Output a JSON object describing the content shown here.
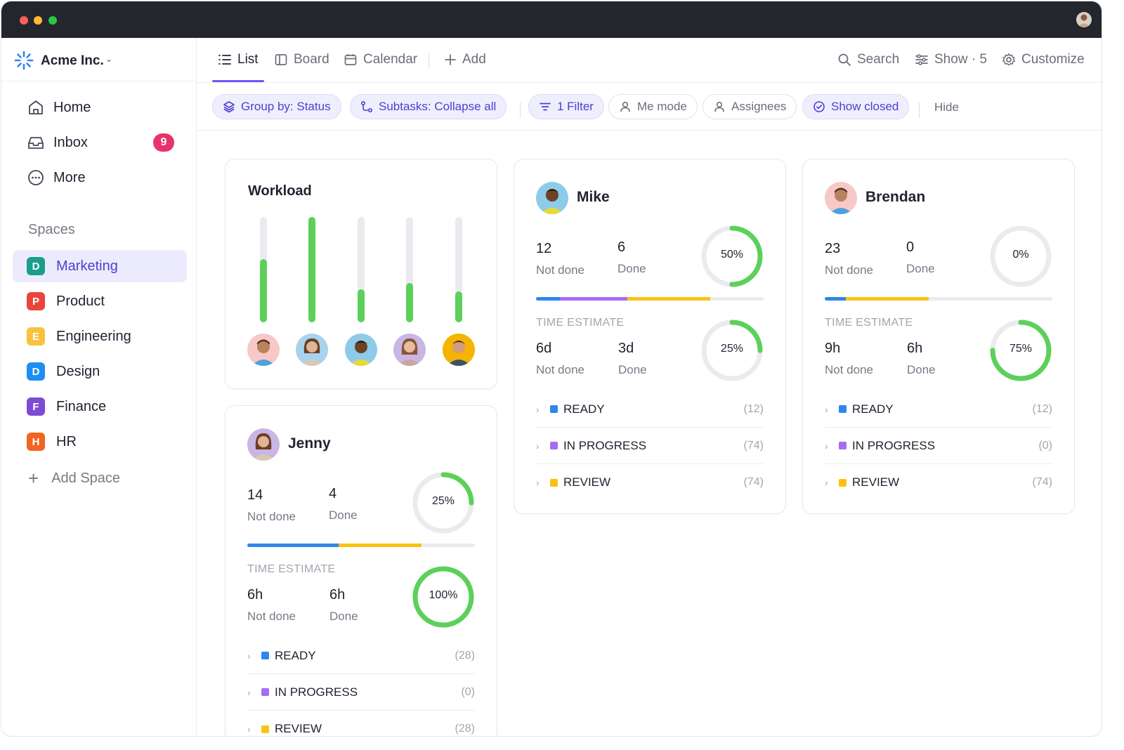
{
  "workspace": {
    "name": "Acme Inc."
  },
  "nav": {
    "home": "Home",
    "inbox": "Inbox",
    "inbox_badge": "9",
    "more": "More"
  },
  "spaces": {
    "label": "Spaces",
    "items": [
      {
        "letter": "D",
        "name": "Marketing",
        "color": "#1a9e8a"
      },
      {
        "letter": "P",
        "name": "Product",
        "color": "#e8453c"
      },
      {
        "letter": "E",
        "name": "Engineering",
        "color": "#f9c23c"
      },
      {
        "letter": "D",
        "name": "Design",
        "color": "#1f8ef1"
      },
      {
        "letter": "F",
        "name": "Finance",
        "color": "#7e4bd4"
      },
      {
        "letter": "H",
        "name": "HR",
        "color": "#f0651f"
      }
    ],
    "add": "Add Space"
  },
  "views": {
    "list": "List",
    "board": "Board",
    "calendar": "Calendar",
    "add": "Add",
    "search": "Search",
    "show": "Show · 5",
    "customize": "Customize"
  },
  "filters": {
    "group_by": "Group by: Status",
    "subtasks": "Subtasks: Collapse all",
    "filter": "1 Filter",
    "me_mode": "Me mode",
    "assignees": "Assignees",
    "show_closed": "Show closed",
    "hide": "Hide"
  },
  "workload": {
    "title": "Workload",
    "bars": [
      0.6,
      1.0,
      0.31,
      0.37,
      0.29
    ]
  },
  "colors": {
    "ready": "#2f86eb",
    "in_progress": "#a66cf2",
    "review": "#f9c313",
    "green": "#5cd05a",
    "accent": "#6a5af9"
  },
  "people": {
    "mike": {
      "name": "Mike",
      "tasks_not_done": "12",
      "tasks_not_done_label": "Not done",
      "tasks_done": "6",
      "tasks_done_label": "Done",
      "tasks_pct": "50%",
      "time_label": "TIME ESTIMATE",
      "time_not_done": "6d",
      "time_not_done_label": "Not done",
      "time_done": "3d",
      "time_done_label": "Done",
      "time_pct": "25%",
      "statuses": [
        {
          "label": "READY",
          "count": "(12)"
        },
        {
          "label": "IN PROGRESS",
          "count": "(74)"
        },
        {
          "label": "REVIEW",
          "count": "(74)"
        }
      ]
    },
    "brendan": {
      "name": "Brendan",
      "tasks_not_done": "23",
      "tasks_not_done_label": "Not done",
      "tasks_done": "0",
      "tasks_done_label": "Done",
      "tasks_pct": "0%",
      "time_label": "TIME ESTIMATE",
      "time_not_done": "9h",
      "time_not_done_label": "Not done",
      "time_done": "6h",
      "time_done_label": "Done",
      "time_pct": "75%",
      "statuses": [
        {
          "label": "READY",
          "count": "(12)"
        },
        {
          "label": "IN PROGRESS",
          "count": "(0)"
        },
        {
          "label": "REVIEW",
          "count": "(74)"
        }
      ]
    },
    "jenny": {
      "name": "Jenny",
      "tasks_not_done": "14",
      "tasks_not_done_label": "Not done",
      "tasks_done": "4",
      "tasks_done_label": "Done",
      "tasks_pct": "25%",
      "time_label": "TIME ESTIMATE",
      "time_not_done": "6h",
      "time_not_done_label": "Not done",
      "time_done": "6h",
      "time_done_label": "Done",
      "time_pct": "100%",
      "statuses": [
        {
          "label": "READY",
          "count": "(28)"
        },
        {
          "label": "IN PROGRESS",
          "count": "(0)"
        },
        {
          "label": "REVIEW",
          "count": "(28)"
        }
      ]
    }
  }
}
